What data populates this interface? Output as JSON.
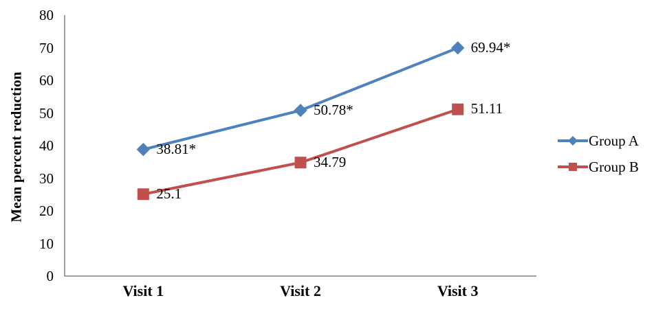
{
  "chart_data": {
    "type": "line",
    "title": "",
    "categories": [
      "Visit 1",
      "Visit 2",
      "Visit 3"
    ],
    "series": [
      {
        "name": "Group A",
        "values": [
          38.81,
          50.78,
          69.94
        ],
        "point_labels": [
          "38.81*",
          "50.78*",
          "69.94*"
        ],
        "color": "#4F81BD",
        "marker": "diamond"
      },
      {
        "name": "Group B",
        "values": [
          25.1,
          34.79,
          51.11
        ],
        "point_labels": [
          "25.1",
          "34.79",
          "51.11"
        ],
        "color": "#C0504D",
        "marker": "square"
      }
    ],
    "xlabel": "",
    "ylabel": "Mean percent reduction",
    "ylim": [
      0,
      80
    ],
    "yticks": [
      0,
      10,
      20,
      30,
      40,
      50,
      60,
      70,
      80
    ],
    "grid": false,
    "legend_position": "right",
    "axis_color": "#808080",
    "text_color": "#000000",
    "background": "#ffffff"
  }
}
